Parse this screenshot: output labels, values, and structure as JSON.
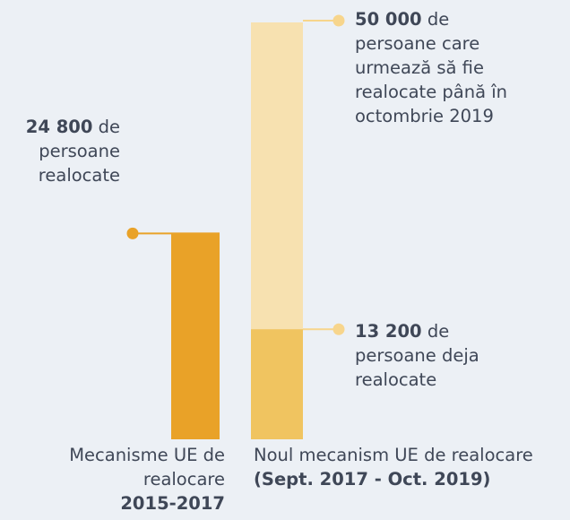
{
  "colors": {
    "background": "#ecf0f5",
    "text": "#3f4757",
    "bar_2015_2017": "#e9a228",
    "bar_target": "#f7e1b0",
    "bar_done": "#f0c460",
    "marker_left": "#e9a228",
    "marker_right": "#f7d58c"
  },
  "chart_data": {
    "type": "bar",
    "categories": [
      "Mecanisme UE de realocare 2015-2017",
      "Noul mecanism UE de realocare (Sept. 2017 - Oct. 2019)"
    ],
    "bars": [
      {
        "category": 0,
        "value": 24800,
        "role": "relocated"
      },
      {
        "category": 1,
        "value": 50000,
        "role": "target"
      },
      {
        "category": 1,
        "value": 13200,
        "role": "relocated"
      }
    ],
    "ylim": [
      0,
      50000
    ]
  },
  "annotations": {
    "left": {
      "value": "24 800",
      "suffix": " de",
      "rest": [
        "persoane",
        "realocate"
      ]
    },
    "top": {
      "value": "50 000",
      "suffix": " de",
      "rest": [
        "persoane care",
        "urmează să fie",
        "realocate până în",
        "octombrie 2019"
      ]
    },
    "mid": {
      "value": "13 200",
      "suffix": " de",
      "rest": [
        "persoane deja",
        "realocate"
      ]
    }
  },
  "categories": {
    "left": {
      "line1": "Mecanisme UE de",
      "line2": "realocare",
      "period": "2015-2017"
    },
    "right": {
      "line1": "Noul mecanism UE de realocare",
      "period": "(Sept. 2017 - Oct. 2019)"
    }
  }
}
